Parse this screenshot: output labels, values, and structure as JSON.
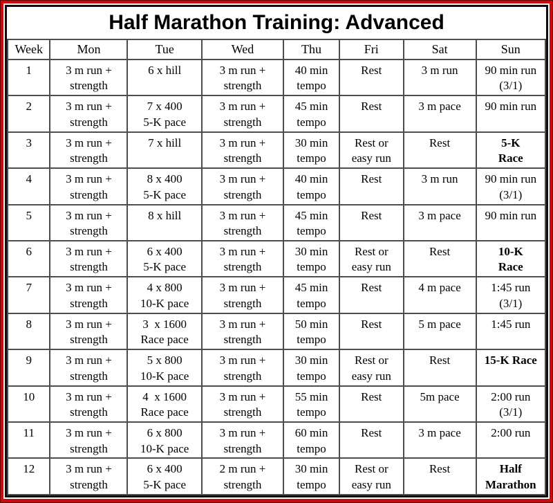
{
  "title": "Half Marathon Training: Advanced",
  "colors": {
    "frame_red": "#c90c0c",
    "inner_border": "#0d0d0d",
    "grid_line": "#4d4d4d",
    "text": "#000000"
  },
  "table": {
    "columns": [
      "Week",
      "Mon",
      "Tue",
      "Wed",
      "Thu",
      "Fri",
      "Sat",
      "Sun"
    ],
    "column_widths_pct": [
      7.9,
      14.4,
      13.8,
      15.2,
      10.4,
      11.9,
      13.5,
      12.9
    ],
    "day_keys": [
      "mon",
      "tue",
      "wed",
      "thu",
      "fri",
      "sat",
      "sun"
    ],
    "rows": [
      {
        "week": "1",
        "days": [
          {
            "text": "3 m run +\nstrength"
          },
          {
            "text": "6 x hill"
          },
          {
            "text": "3 m run +\nstrength"
          },
          {
            "text": "40 min\ntempo"
          },
          {
            "text": "Rest"
          },
          {
            "text": "3 m run"
          },
          {
            "text": "90 min run\n(3/1)"
          }
        ]
      },
      {
        "week": "2",
        "days": [
          {
            "text": "3 m run +\nstrength"
          },
          {
            "text": "7 x 400\n5-K pace"
          },
          {
            "text": "3 m run +\nstrength"
          },
          {
            "text": "45 min\ntempo"
          },
          {
            "text": "Rest"
          },
          {
            "text": "3 m pace"
          },
          {
            "text": "90 min run"
          }
        ]
      },
      {
        "week": "3",
        "days": [
          {
            "text": "3 m run +\nstrength"
          },
          {
            "text": "7 x hill"
          },
          {
            "text": "3 m run +\nstrength"
          },
          {
            "text": "30 min\ntempo"
          },
          {
            "text": "Rest or\neasy run"
          },
          {
            "text": "Rest"
          },
          {
            "text": "5-K\nRace",
            "bold": true
          }
        ]
      },
      {
        "week": "4",
        "days": [
          {
            "text": "3 m run +\nstrength"
          },
          {
            "text": "8 x 400\n5-K pace"
          },
          {
            "text": "3 m run +\nstrength"
          },
          {
            "text": "40 min\ntempo"
          },
          {
            "text": "Rest"
          },
          {
            "text": "3 m run"
          },
          {
            "text": "90 min run\n(3/1)"
          }
        ]
      },
      {
        "week": "5",
        "days": [
          {
            "text": "3 m run +\nstrength"
          },
          {
            "text": "8 x hill"
          },
          {
            "text": "3 m run +\nstrength"
          },
          {
            "text": "45 min\ntempo"
          },
          {
            "text": "Rest"
          },
          {
            "text": "3 m pace"
          },
          {
            "text": "90 min run"
          }
        ]
      },
      {
        "week": "6",
        "days": [
          {
            "text": "3 m run +\nstrength"
          },
          {
            "text": "6 x 400\n5-K pace"
          },
          {
            "text": "3 m run +\nstrength"
          },
          {
            "text": "30 min\ntempo"
          },
          {
            "text": "Rest or\neasy run"
          },
          {
            "text": "Rest"
          },
          {
            "text": "10-K\nRace",
            "bold": true
          }
        ]
      },
      {
        "week": "7",
        "days": [
          {
            "text": "3 m run +\nstrength"
          },
          {
            "text": "4 x 800\n10-K pace"
          },
          {
            "text": "3 m run +\nstrength"
          },
          {
            "text": "45 min\ntempo"
          },
          {
            "text": "Rest"
          },
          {
            "text": "4 m pace"
          },
          {
            "text": "1:45 run\n(3/1)"
          }
        ]
      },
      {
        "week": "8",
        "days": [
          {
            "text": "3 m run +\nstrength"
          },
          {
            "text": "3  x 1600\nRace pace"
          },
          {
            "text": "3 m run +\nstrength"
          },
          {
            "text": "50 min\ntempo"
          },
          {
            "text": "Rest"
          },
          {
            "text": "5 m pace"
          },
          {
            "text": "1:45 run"
          }
        ]
      },
      {
        "week": "9",
        "days": [
          {
            "text": "3 m run +\nstrength"
          },
          {
            "text": "5 x 800\n10-K pace"
          },
          {
            "text": "3 m run +\nstrength"
          },
          {
            "text": "30 min\ntempo"
          },
          {
            "text": "Rest or\neasy run"
          },
          {
            "text": "Rest"
          },
          {
            "text": "15-K Race",
            "bold": true
          }
        ]
      },
      {
        "week": "10",
        "days": [
          {
            "text": "3 m run +\nstrength"
          },
          {
            "text": "4  x 1600\nRace pace"
          },
          {
            "text": "3 m run +\nstrength"
          },
          {
            "text": "55 min\ntempo"
          },
          {
            "text": "Rest"
          },
          {
            "text": "5m pace"
          },
          {
            "text": "2:00 run\n(3/1)"
          }
        ]
      },
      {
        "week": "11",
        "days": [
          {
            "text": "3 m run +\nstrength"
          },
          {
            "text": "6 x 800\n10-K pace"
          },
          {
            "text": "3 m run +\nstrength"
          },
          {
            "text": "60 min\ntempo"
          },
          {
            "text": "Rest"
          },
          {
            "text": "3 m pace"
          },
          {
            "text": "2:00 run"
          }
        ]
      },
      {
        "week": "12",
        "days": [
          {
            "text": "3 m run +\nstrength"
          },
          {
            "text": "6 x 400\n5-K pace"
          },
          {
            "text": "2 m run +\nstrength"
          },
          {
            "text": "30 min\ntempo"
          },
          {
            "text": "Rest or\neasy run"
          },
          {
            "text": "Rest"
          },
          {
            "text": "Half\nMarathon",
            "bold": true
          }
        ]
      }
    ]
  }
}
